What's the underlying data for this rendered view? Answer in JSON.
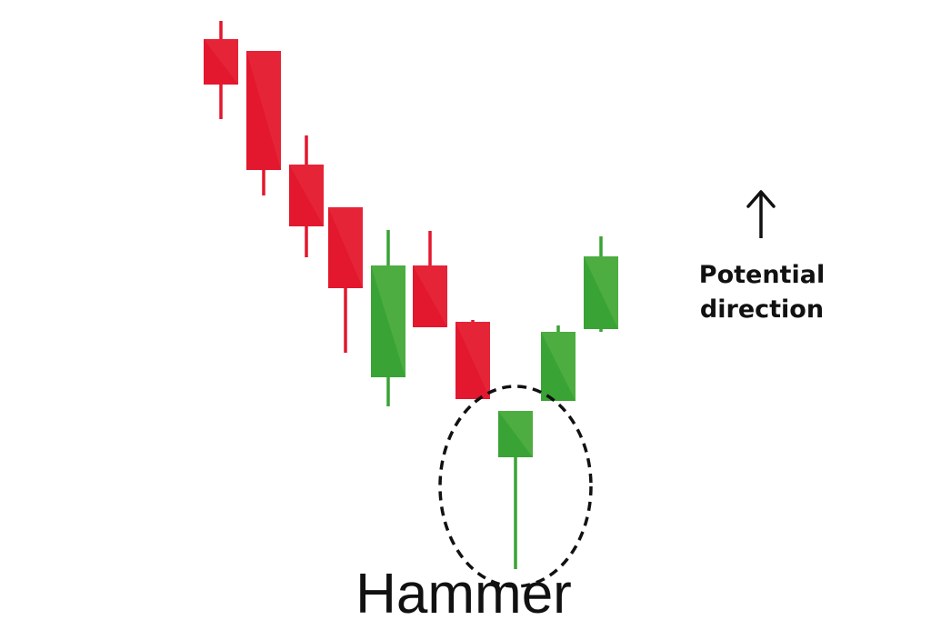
{
  "colors": {
    "bearish": "#e3172d",
    "bearish_highlight": "#e8323f",
    "bullish": "#3aa335",
    "bullish_highlight": "#5cb64a",
    "outline": "#111111"
  },
  "annotation": {
    "arrow_icon": "arrow-up-icon",
    "text_line1": "Potential",
    "text_line2": "direction"
  },
  "pattern": {
    "title": "Hammer",
    "highlight_index": 7
  },
  "chart_data": {
    "type": "candlestick",
    "title": "",
    "xlabel": "",
    "ylabel": "",
    "grid": false,
    "ylim": [
      0,
      693
    ],
    "candles": [
      {
        "open": 650,
        "close": 600,
        "high": 670,
        "low": 562,
        "direction": "down"
      },
      {
        "open": 637,
        "close": 506,
        "high": 637,
        "low": 478,
        "direction": "down"
      },
      {
        "open": 512,
        "close": 444,
        "high": 544,
        "low": 410,
        "direction": "down"
      },
      {
        "open": 465,
        "close": 376,
        "high": 465,
        "low": 305,
        "direction": "down"
      },
      {
        "open": 278,
        "close": 401,
        "high": 440,
        "low": 246,
        "direction": "up"
      },
      {
        "open": 401,
        "close": 333,
        "high": 439,
        "low": 333,
        "direction": "down"
      },
      {
        "open": 339,
        "close": 254,
        "high": 341,
        "low": 254,
        "direction": "down"
      },
      {
        "open": 190,
        "close": 241,
        "high": 241,
        "low": 67,
        "direction": "up"
      },
      {
        "open": 252,
        "close": 328,
        "high": 335,
        "low": 252,
        "direction": "up"
      },
      {
        "open": 331,
        "close": 411,
        "high": 433,
        "low": 328,
        "direction": "up"
      }
    ]
  }
}
